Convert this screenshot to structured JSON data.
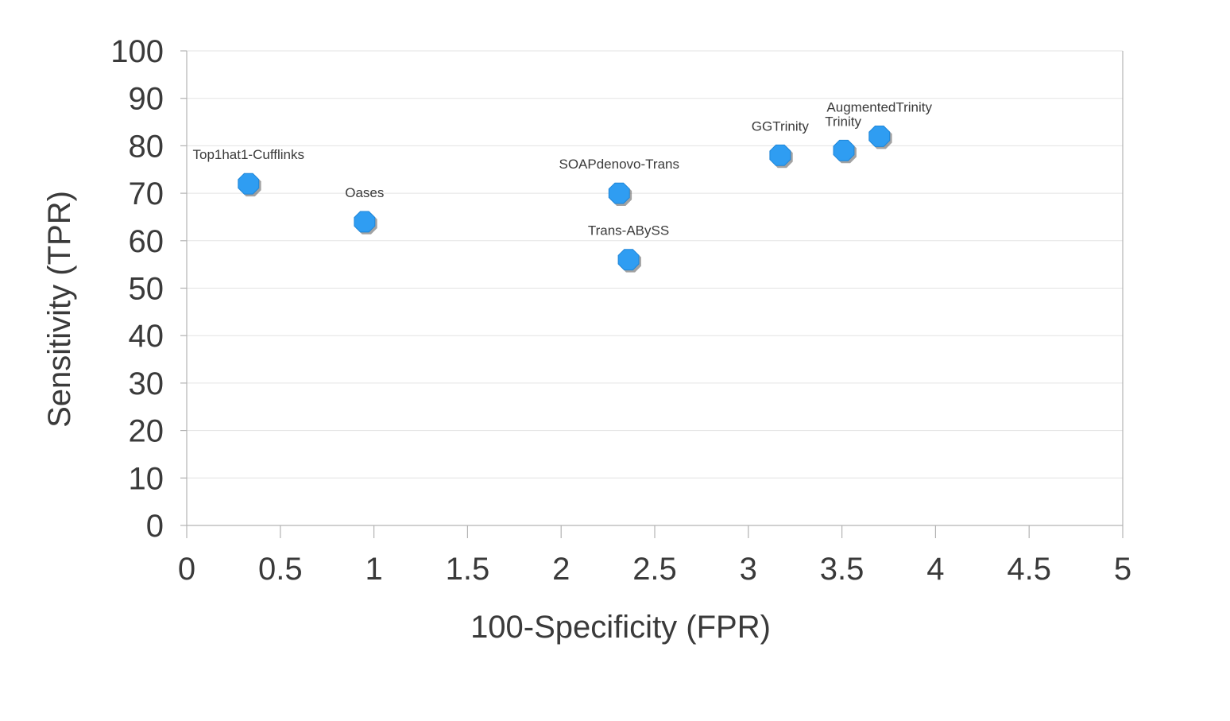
{
  "chart_data": {
    "type": "scatter",
    "title": "",
    "xlabel": "100-Specificity (FPR)",
    "ylabel": "Sensitivity (TPR)",
    "xlim": [
      0,
      5
    ],
    "ylim": [
      0,
      100
    ],
    "x_ticks": [
      0,
      0.5,
      1,
      1.5,
      2,
      2.5,
      3,
      3.5,
      4,
      4.5,
      5
    ],
    "x_tick_labels": [
      "0",
      "0.5",
      "1",
      "1.5",
      "2",
      "2.5",
      "3",
      "3.5",
      "4",
      "4.5",
      "5"
    ],
    "y_ticks": [
      0,
      10,
      20,
      30,
      40,
      50,
      60,
      70,
      80,
      90,
      100
    ],
    "y_tick_labels": [
      "0",
      "10",
      "20",
      "30",
      "40",
      "50",
      "60",
      "70",
      "80",
      "90",
      "100"
    ],
    "grid": true,
    "legend": false,
    "marker_color": "#2f9df2",
    "points": [
      {
        "name": "Top1hat1-Cufflinks",
        "x": 0.33,
        "y": 72,
        "label_anchor": "middle"
      },
      {
        "name": "Oases",
        "x": 0.95,
        "y": 64,
        "label_anchor": "middle"
      },
      {
        "name": "SOAPdenovo-Trans",
        "x": 2.31,
        "y": 70,
        "label_anchor": "middle"
      },
      {
        "name": "Trans-ABySS",
        "x": 2.36,
        "y": 56,
        "label_anchor": "middle"
      },
      {
        "name": "GGTrinity",
        "x": 3.17,
        "y": 78,
        "label_anchor": "middle"
      },
      {
        "name": "Trinity",
        "x": 3.51,
        "y": 79,
        "label_anchor": "end"
      },
      {
        "name": "AugmentedTrinity",
        "x": 3.7,
        "y": 82,
        "label_anchor": "middle"
      }
    ]
  }
}
